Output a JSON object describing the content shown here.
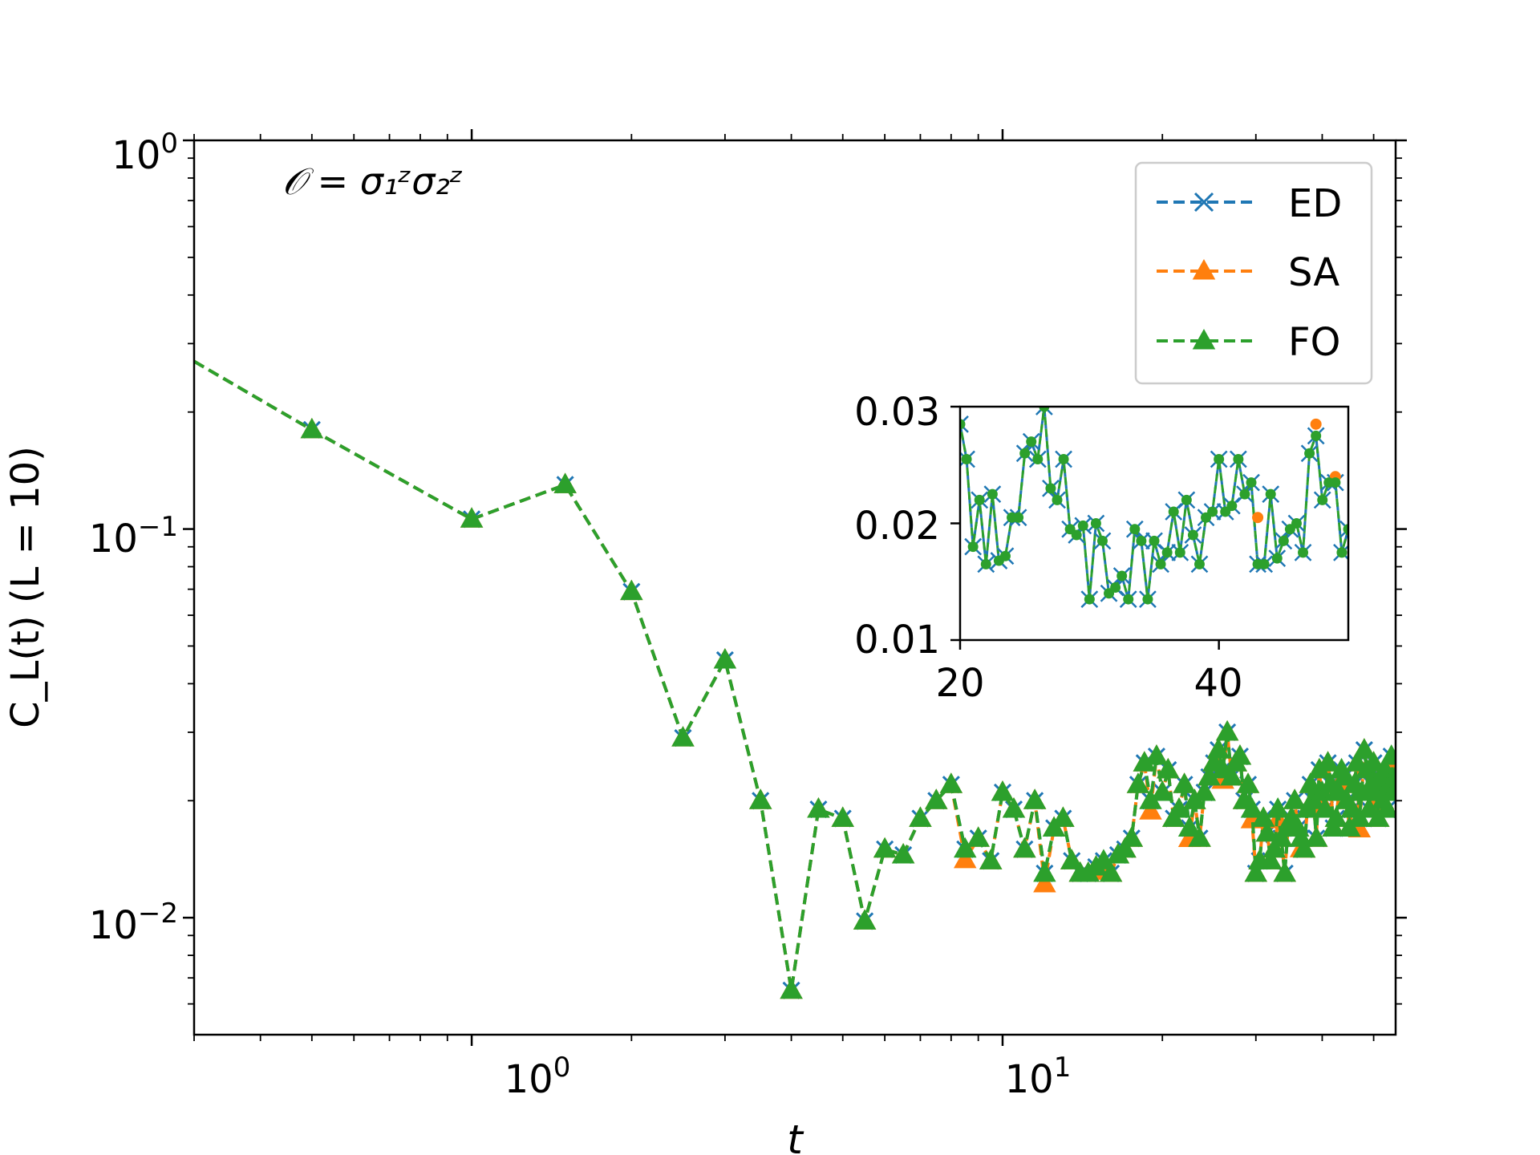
{
  "chart_data": {
    "type": "line",
    "xscale": "log",
    "yscale": "log",
    "xlim": [
      0.3,
      55
    ],
    "ylim": [
      0.005,
      1.0
    ],
    "xlabel": "t",
    "ylabel": "C_L(t) (L = 10)",
    "annotation": "𝒪 = σ₁ᶻσ₂ᶻ",
    "x_ticks": [
      {
        "base": "10",
        "exp": "0"
      },
      {
        "base": "10",
        "exp": "1"
      }
    ],
    "y_ticks": [
      {
        "base": "10",
        "exp": "0"
      },
      {
        "base": "10",
        "exp": "−1"
      },
      {
        "base": "10",
        "exp": "−2"
      }
    ],
    "legend": {
      "placement": "top-right",
      "entries": [
        "ED",
        "SA",
        "FO"
      ]
    },
    "colors": {
      "ED": "#1f77b4",
      "SA": "#ff7f0e",
      "FO": "#2ca02c"
    },
    "series": [
      {
        "name": "ED",
        "marker": "x",
        "points": []
      },
      {
        "name": "SA",
        "marker": "triangle",
        "points": []
      },
      {
        "name": "FO",
        "marker": "triangle",
        "points": []
      }
    ],
    "base_points": [
      [
        0.3,
        0.27
      ],
      [
        0.5,
        0.18
      ],
      [
        1.0,
        0.106
      ],
      [
        1.5,
        0.13
      ],
      [
        2.0,
        0.069
      ],
      [
        2.5,
        0.029
      ],
      [
        3.0,
        0.046
      ],
      [
        3.5,
        0.02
      ],
      [
        4.0,
        0.0065
      ],
      [
        4.5,
        0.019
      ],
      [
        5.0,
        0.018
      ],
      [
        5.5,
        0.0098
      ],
      [
        6.0,
        0.015
      ],
      [
        6.5,
        0.0145
      ],
      [
        7.0,
        0.018
      ],
      [
        7.5,
        0.02
      ],
      [
        8.0,
        0.022
      ],
      [
        8.5,
        0.015
      ],
      [
        9.0,
        0.016
      ],
      [
        9.5,
        0.014
      ],
      [
        10.0,
        0.021
      ],
      [
        10.5,
        0.019
      ],
      [
        11.0,
        0.015
      ],
      [
        11.5,
        0.02
      ],
      [
        12.0,
        0.013
      ],
      [
        12.5,
        0.017
      ],
      [
        13.0,
        0.018
      ],
      [
        13.5,
        0.014
      ],
      [
        14.0,
        0.013
      ],
      [
        14.5,
        0.013
      ],
      [
        15.0,
        0.0135
      ],
      [
        15.5,
        0.014
      ],
      [
        16.0,
        0.013
      ],
      [
        16.5,
        0.0145
      ],
      [
        17.0,
        0.015
      ],
      [
        17.5,
        0.016
      ],
      [
        18.0,
        0.022
      ],
      [
        18.5,
        0.025
      ],
      [
        19.0,
        0.02
      ],
      [
        19.5,
        0.026
      ],
      [
        20.0,
        0.021
      ],
      [
        20.5,
        0.024
      ],
      [
        21.0,
        0.018
      ],
      [
        21.5,
        0.019
      ],
      [
        22.0,
        0.022
      ],
      [
        22.5,
        0.017
      ],
      [
        23.0,
        0.02
      ],
      [
        23.5,
        0.016
      ],
      [
        24.0,
        0.021
      ],
      [
        24.5,
        0.023
      ],
      [
        25.0,
        0.025
      ],
      [
        25.5,
        0.027
      ],
      [
        26.0,
        0.024
      ],
      [
        26.5,
        0.03
      ],
      [
        27.0,
        0.023
      ],
      [
        27.5,
        0.025
      ],
      [
        28.0,
        0.026
      ],
      [
        28.5,
        0.02
      ],
      [
        29.0,
        0.022
      ],
      [
        29.5,
        0.019
      ],
      [
        30.0,
        0.013
      ],
      [
        30.5,
        0.014
      ],
      [
        31.0,
        0.018
      ],
      [
        31.5,
        0.0165
      ],
      [
        32.0,
        0.014
      ],
      [
        32.5,
        0.015
      ],
      [
        33.0,
        0.019
      ],
      [
        33.5,
        0.016
      ],
      [
        34.0,
        0.013
      ],
      [
        34.5,
        0.017
      ],
      [
        35.0,
        0.018
      ],
      [
        35.5,
        0.02
      ],
      [
        36.0,
        0.017
      ],
      [
        36.5,
        0.016
      ],
      [
        37.0,
        0.015
      ],
      [
        37.5,
        0.019
      ],
      [
        38.0,
        0.022
      ],
      [
        38.5,
        0.02
      ],
      [
        39.0,
        0.016
      ],
      [
        39.5,
        0.024
      ],
      [
        40.0,
        0.021
      ],
      [
        40.5,
        0.019
      ],
      [
        41.0,
        0.025
      ],
      [
        41.5,
        0.022
      ],
      [
        42.0,
        0.017
      ],
      [
        42.5,
        0.018
      ],
      [
        43.0,
        0.021
      ],
      [
        43.5,
        0.024
      ],
      [
        44.0,
        0.023
      ],
      [
        44.5,
        0.02
      ],
      [
        45.0,
        0.017
      ],
      [
        45.5,
        0.019
      ],
      [
        46.0,
        0.022
      ],
      [
        46.5,
        0.025
      ],
      [
        47.0,
        0.018
      ],
      [
        47.5,
        0.021
      ],
      [
        48.0,
        0.027
      ],
      [
        48.5,
        0.024
      ],
      [
        49.0,
        0.019
      ],
      [
        49.5,
        0.022
      ],
      [
        50.0,
        0.025
      ],
      [
        50.5,
        0.021
      ],
      [
        51.0,
        0.018
      ],
      [
        51.5,
        0.023
      ],
      [
        52.0,
        0.02
      ],
      [
        52.5,
        0.024
      ],
      [
        53.0,
        0.019
      ],
      [
        53.5,
        0.022
      ],
      [
        54.0,
        0.026
      ],
      [
        54.5,
        0.021
      ],
      [
        55.0,
        0.023
      ]
    ],
    "inset": {
      "type": "line",
      "xscale": "linear",
      "yscale": "linear",
      "xlim": [
        20,
        50
      ],
      "ylim": [
        0.01,
        0.03
      ],
      "x_ticks": [
        "20",
        "40"
      ],
      "y_ticks": [
        "0.01",
        "0.02",
        "0.03"
      ],
      "points": [
        [
          20.0,
          0.0285
        ],
        [
          20.5,
          0.0255
        ],
        [
          21.0,
          0.018
        ],
        [
          21.5,
          0.022
        ],
        [
          22.0,
          0.0165
        ],
        [
          22.5,
          0.0225
        ],
        [
          23.0,
          0.0168
        ],
        [
          23.5,
          0.0172
        ],
        [
          24.0,
          0.0205
        ],
        [
          24.5,
          0.0205
        ],
        [
          25.0,
          0.026
        ],
        [
          25.5,
          0.027
        ],
        [
          26.0,
          0.0255
        ],
        [
          26.5,
          0.03
        ],
        [
          27.0,
          0.023
        ],
        [
          27.5,
          0.022
        ],
        [
          28.0,
          0.0255
        ],
        [
          28.5,
          0.0195
        ],
        [
          29.0,
          0.019
        ],
        [
          29.5,
          0.0198
        ],
        [
          30.0,
          0.0135
        ],
        [
          30.5,
          0.02
        ],
        [
          31.0,
          0.0185
        ],
        [
          31.5,
          0.014
        ],
        [
          32.0,
          0.0145
        ],
        [
          32.5,
          0.0155
        ],
        [
          33.0,
          0.0135
        ],
        [
          33.5,
          0.0195
        ],
        [
          34.0,
          0.0185
        ],
        [
          34.5,
          0.0135
        ],
        [
          35.0,
          0.0185
        ],
        [
          35.5,
          0.0165
        ],
        [
          36.0,
          0.0175
        ],
        [
          36.5,
          0.021
        ],
        [
          37.0,
          0.0175
        ],
        [
          37.5,
          0.022
        ],
        [
          38.0,
          0.019
        ],
        [
          38.5,
          0.0165
        ],
        [
          39.0,
          0.0205
        ],
        [
          39.5,
          0.021
        ],
        [
          40.0,
          0.0255
        ],
        [
          40.5,
          0.021
        ],
        [
          41.0,
          0.0215
        ],
        [
          41.5,
          0.0255
        ],
        [
          42.0,
          0.0225
        ],
        [
          42.5,
          0.0235
        ],
        [
          43.0,
          0.0165
        ],
        [
          43.5,
          0.0165
        ],
        [
          44.0,
          0.0225
        ],
        [
          44.5,
          0.017
        ],
        [
          45.0,
          0.0185
        ],
        [
          45.5,
          0.0195
        ],
        [
          46.0,
          0.02
        ],
        [
          46.5,
          0.0175
        ],
        [
          47.0,
          0.026
        ],
        [
          47.5,
          0.0275
        ],
        [
          48.0,
          0.022
        ],
        [
          48.5,
          0.0235
        ],
        [
          49.0,
          0.0235
        ],
        [
          49.5,
          0.0175
        ],
        [
          50.0,
          0.0195
        ]
      ],
      "sa_offsets": [
        [
          47.5,
          0.0285
        ],
        [
          49.0,
          0.024
        ],
        [
          43.0,
          0.0205
        ]
      ]
    }
  }
}
